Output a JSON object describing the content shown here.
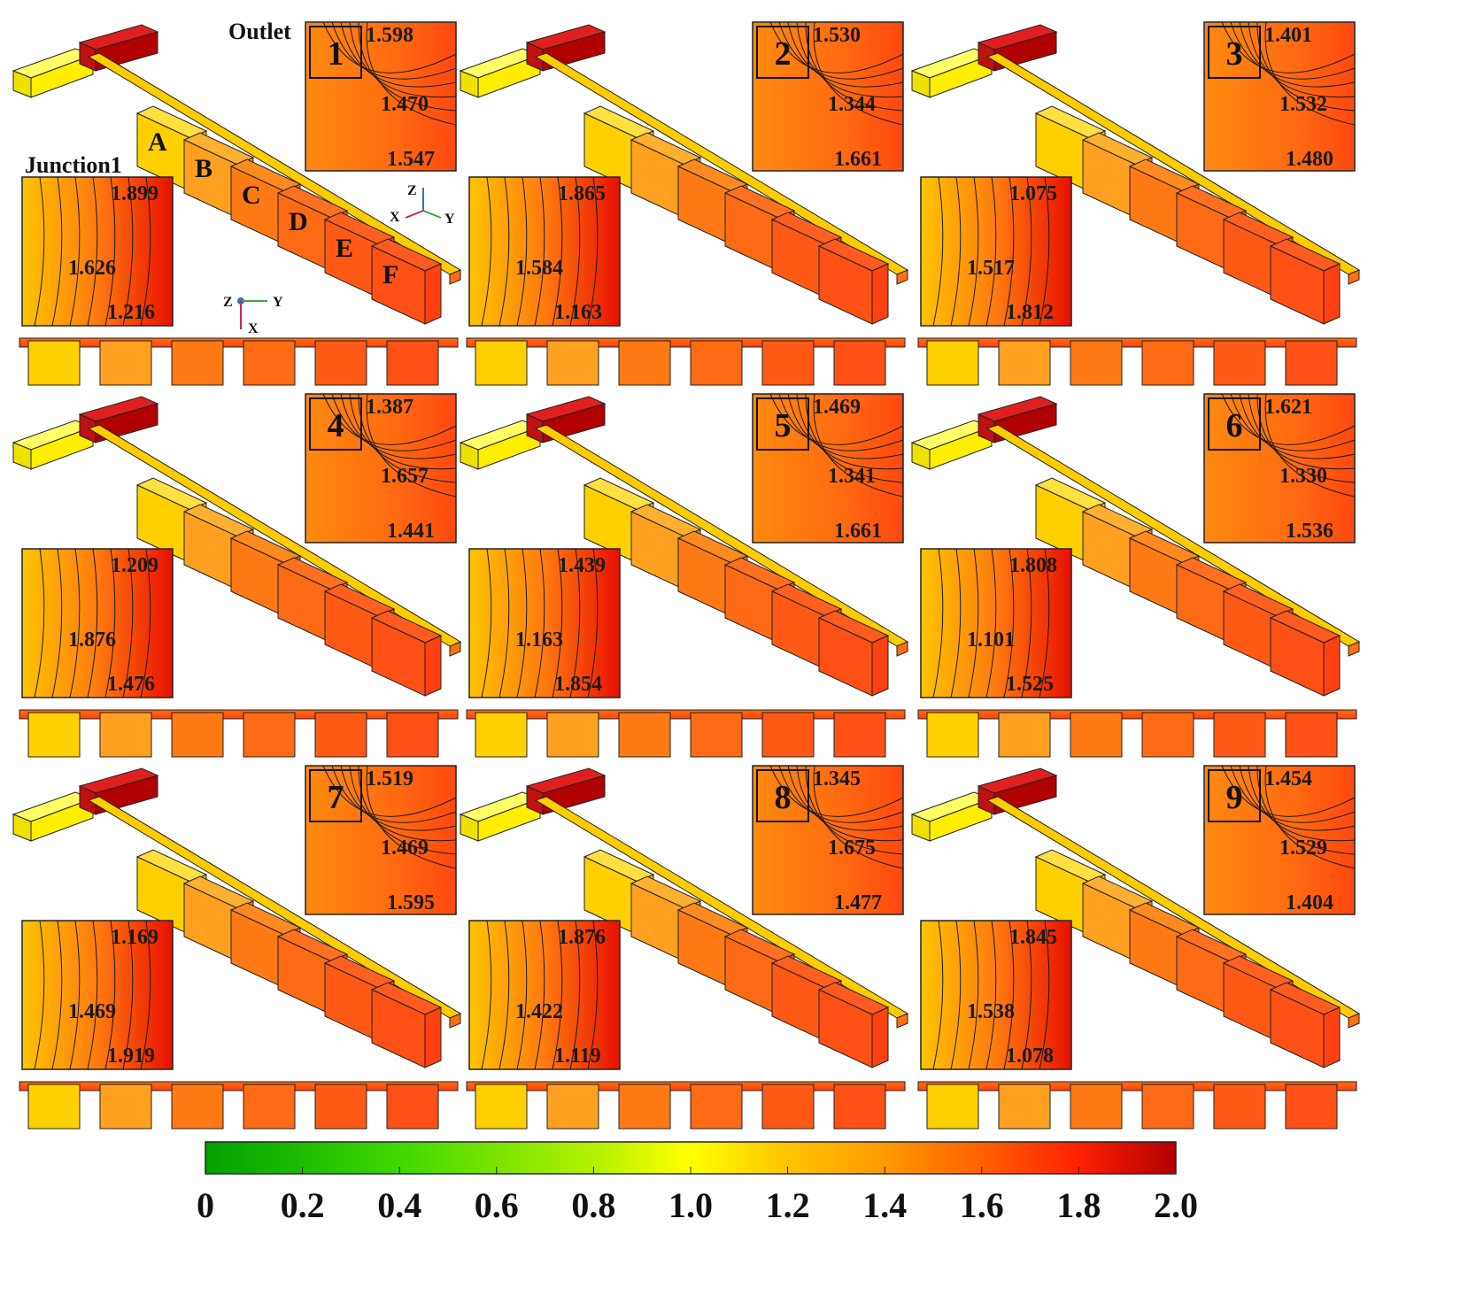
{
  "colors": {
    "scale": [
      "#00a000",
      "#4fdc00",
      "#b8f000",
      "#ffff00",
      "#ffc000",
      "#ff8000",
      "#ff3000",
      "#b00000"
    ],
    "outline": "#222222",
    "contour": "#1a1a1a"
  },
  "labels": {
    "outlet": "Outlet",
    "junction": "Junction1",
    "modules": [
      "A",
      "B",
      "C",
      "D",
      "E",
      "F"
    ],
    "axes_iso": {
      "z": "Z",
      "x": "X",
      "y": "Y"
    },
    "axes_top": {
      "z": "Z",
      "y": "Y",
      "x": "X"
    }
  },
  "panels": [
    {
      "id": "1",
      "outlet_values": [
        "1.598",
        "1.470",
        "1.547"
      ],
      "junction_values": [
        "1.899",
        "1.626",
        "1.216"
      ]
    },
    {
      "id": "2",
      "outlet_values": [
        "1.530",
        "1.344",
        "1.661"
      ],
      "junction_values": [
        "1.865",
        "1.584",
        "1.163"
      ]
    },
    {
      "id": "3",
      "outlet_values": [
        "1.401",
        "1.532",
        "1.480"
      ],
      "junction_values": [
        "1.075",
        "1.517",
        "1.812"
      ]
    },
    {
      "id": "4",
      "outlet_values": [
        "1.387",
        "1.657",
        "1.441"
      ],
      "junction_values": [
        "1.209",
        "1.876",
        "1.476"
      ]
    },
    {
      "id": "5",
      "outlet_values": [
        "1.469",
        "1.341",
        "1.661"
      ],
      "junction_values": [
        "1.439",
        "1.163",
        "1.854"
      ]
    },
    {
      "id": "6",
      "outlet_values": [
        "1.621",
        "1.330",
        "1.536"
      ],
      "junction_values": [
        "1.808",
        "1.101",
        "1.525"
      ]
    },
    {
      "id": "7",
      "outlet_values": [
        "1.519",
        "1.469",
        "1.595"
      ],
      "junction_values": [
        "1.169",
        "1.469",
        "1.919"
      ]
    },
    {
      "id": "8",
      "outlet_values": [
        "1.345",
        "1.675",
        "1.477"
      ],
      "junction_values": [
        "1.876",
        "1.422",
        "1.119"
      ]
    },
    {
      "id": "9",
      "outlet_values": [
        "1.454",
        "1.529",
        "1.404"
      ],
      "junction_values": [
        "1.845",
        "1.538",
        "1.078"
      ]
    }
  ],
  "colorbar": {
    "min": 0,
    "max": 2.0,
    "ticks": [
      "0",
      "0.2",
      "0.4",
      "0.6",
      "0.8",
      "1.0",
      "1.2",
      "1.4",
      "1.6",
      "1.8",
      "2.0"
    ]
  }
}
